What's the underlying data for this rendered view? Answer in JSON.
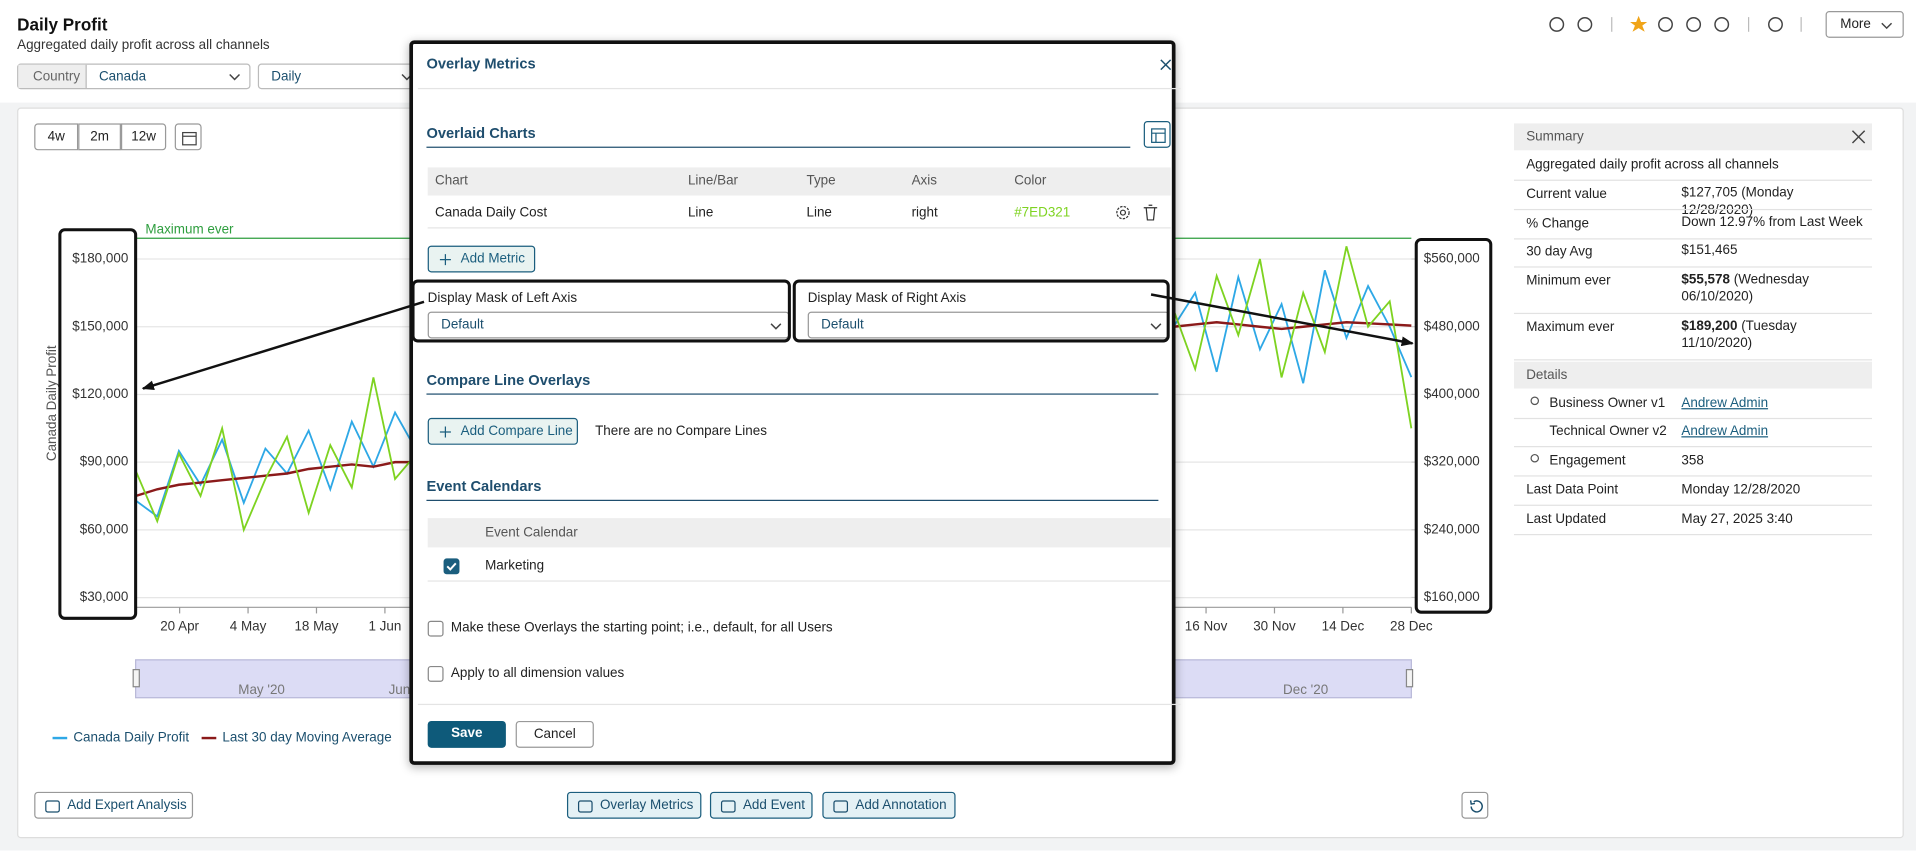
{
  "header": {
    "title": "Daily Profit",
    "subtitle": "Aggregated daily profit across all channels",
    "more": "More"
  },
  "filters": {
    "country_label": "Country",
    "country": "Canada",
    "frequency": "Daily"
  },
  "range_buttons": [
    "4w",
    "2m",
    "12w"
  ],
  "chart_data": {
    "type": "line",
    "y_label": "Canada Daily Profit",
    "xticks": [
      "20 Apr",
      "4 May",
      "18 May",
      "1 Jun",
      "16 Nov",
      "30 Nov",
      "14 Dec",
      "28 Dec"
    ],
    "ylim": [
      25700,
      207600
    ],
    "yticks": [
      {
        "value": 30000,
        "label": "$30,000"
      },
      {
        "value": 60000,
        "label": "$60,000"
      },
      {
        "value": 90000,
        "label": "$90,000"
      },
      {
        "value": 120000,
        "label": "$120,000"
      },
      {
        "value": 150000,
        "label": "$150,000"
      },
      {
        "value": 180000,
        "label": "$180,000"
      }
    ],
    "y2lim": [
      148400,
      633600
    ],
    "y2ticks": [
      {
        "value": 160000,
        "label": "$160,000"
      },
      {
        "value": 240000,
        "label": "$240,000"
      },
      {
        "value": 320000,
        "label": "$320,000"
      },
      {
        "value": 400000,
        "label": "$400,000"
      },
      {
        "value": 480000,
        "label": "$480,000"
      },
      {
        "value": 560000,
        "label": "$560,000"
      }
    ],
    "grid": true,
    "reference": {
      "label": "Maximum ever",
      "value": 189200,
      "color": "#2e9e3e"
    },
    "series": [
      {
        "name": "Canada Daily Profit",
        "color": "#2ea8e6",
        "values": [
          73000,
          66000,
          95000,
          80000,
          100000,
          72000,
          96000,
          85000,
          104000,
          78000,
          108000,
          88000,
          112000,
          95000,
          null,
          null,
          null,
          null,
          null,
          null,
          null,
          null,
          null,
          null,
          null,
          null,
          null,
          null,
          null,
          null,
          null,
          null,
          null,
          null,
          null,
          null,
          null,
          null,
          null,
          null,
          null,
          null,
          null,
          null,
          null,
          null,
          null,
          null,
          150000,
          165000,
          130000,
          172000,
          140000,
          160000,
          125000,
          175000,
          145000,
          168000,
          150000,
          127705
        ]
      },
      {
        "name": "Last 30 day Moving Average",
        "color": "#8b1a1a",
        "values": [
          75000,
          78000,
          80000,
          81000,
          82000,
          83000,
          84000,
          85000,
          87000,
          88000,
          89000,
          88000,
          90000,
          90000,
          null,
          null,
          null,
          null,
          null,
          null,
          null,
          null,
          null,
          null,
          null,
          null,
          null,
          null,
          null,
          null,
          null,
          null,
          null,
          null,
          null,
          null,
          null,
          null,
          null,
          null,
          null,
          null,
          null,
          null,
          null,
          null,
          null,
          null,
          150000,
          151000,
          152000,
          151000,
          150000,
          149000,
          150000,
          151000,
          152000,
          151500,
          151000,
          150500
        ]
      },
      {
        "name": "Canada Daily Cost",
        "color": "#7ED321",
        "axis": "y2",
        "values": [
          310000,
          250000,
          330000,
          280000,
          360000,
          240000,
          300000,
          350000,
          260000,
          340000,
          290000,
          420000,
          300000,
          330000,
          null,
          null,
          null,
          null,
          null,
          null,
          null,
          null,
          null,
          null,
          null,
          null,
          null,
          null,
          null,
          null,
          null,
          null,
          null,
          null,
          null,
          null,
          null,
          null,
          null,
          null,
          null,
          null,
          null,
          null,
          null,
          null,
          null,
          null,
          500000,
          430000,
          540000,
          470000,
          560000,
          420000,
          520000,
          450000,
          575000,
          480000,
          510000,
          360000
        ]
      }
    ],
    "navigator_labels": [
      "May '20",
      "Jun",
      "Dec '20"
    ]
  },
  "actions": [
    "Add Expert Analysis",
    "Overlay Metrics",
    "Add Event",
    "Add Annotation"
  ],
  "summary": {
    "title": "Summary",
    "description": "Aggregated daily profit across all channels",
    "rows": [
      {
        "label": "Current value",
        "value": "$127,705",
        "note": "(Monday 12/28/2020)",
        "bold": false
      },
      {
        "label": "% Change",
        "value": "Down 12.97% from Last Week",
        "bold": false
      },
      {
        "label": "30 day Avg",
        "value": "$151,465",
        "bold": false
      },
      {
        "label": "Minimum ever",
        "value": "$55,578",
        "note": "(Wednesday 06/10/2020)",
        "bold": true
      },
      {
        "label": "Maximum ever",
        "value": "$189,200",
        "note": "(Tuesday 11/10/2020)",
        "bold": true
      }
    ],
    "details_title": "Details",
    "details": [
      {
        "label": "Business Owner v1",
        "value": "Andrew Admin",
        "link": true
      },
      {
        "label": "Technical Owner v2",
        "value": "Andrew Admin",
        "link": true
      },
      {
        "label": "Engagement",
        "value": "358",
        "link": false
      },
      {
        "label": "Last Data Point",
        "value": "Monday 12/28/2020",
        "link": false
      },
      {
        "label": "Last Updated",
        "value": "May 27, 2025 3:40",
        "link": false
      }
    ]
  },
  "modal": {
    "title": "Overlay Metrics",
    "overlaid": {
      "title": "Overlaid Charts",
      "columns": [
        "Chart",
        "Line/Bar",
        "Type",
        "Axis",
        "Color"
      ],
      "rows": [
        [
          "Canada Daily Cost",
          "Line",
          "Line",
          "right",
          "#7ED321"
        ]
      ],
      "add_button": "Add Metric"
    },
    "masks": [
      {
        "label": "Display Mask of Left Axis",
        "value": "Default"
      },
      {
        "label": "Display Mask of Right Axis",
        "value": "Default"
      }
    ],
    "compare": {
      "title": "Compare Line Overlays",
      "button": "Add Compare Line",
      "empty": "There are no Compare Lines"
    },
    "events": {
      "title": "Event Calendars",
      "column": "Event Calendar",
      "rows": [
        {
          "name": "Marketing",
          "checked": true
        }
      ]
    },
    "options": [
      {
        "label": "Make these Overlays the starting point; i.e., default, for all Users",
        "checked": false
      },
      {
        "label": "Apply to all dimension values",
        "checked": false
      }
    ],
    "save": "Save",
    "cancel": "Cancel"
  }
}
